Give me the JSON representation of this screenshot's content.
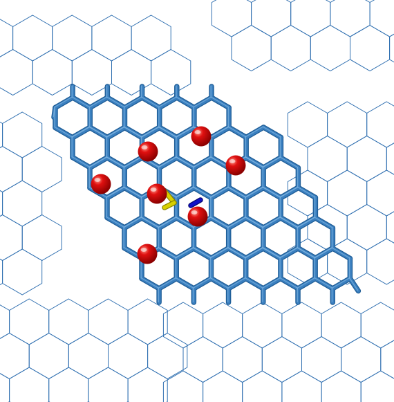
{
  "scene": {
    "background_color": "#ffffff",
    "lattice_color": "#2f6fb0",
    "bond_color": "#3a7fbf",
    "bond_edge_color": "#1f5d96",
    "atom_color": "#d40000",
    "sulfur_color": "#d8d000",
    "nitrogen_color": "#1010c8",
    "atom_count": 7,
    "heteroatoms": [
      "sulfur",
      "nitrogen"
    ]
  }
}
